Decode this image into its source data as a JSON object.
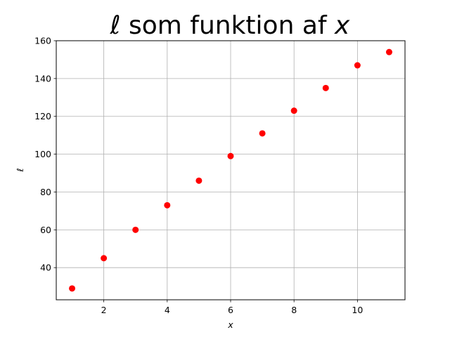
{
  "chart_data": {
    "type": "scatter",
    "title": {
      "symbol": "ℓ",
      "middle": " som funktion af ",
      "variable": "x"
    },
    "xlabel": "x",
    "ylabel": "ℓ",
    "xlim": [
      0.5,
      11.5
    ],
    "ylim": [
      23,
      160
    ],
    "xticks": [
      2,
      4,
      6,
      8,
      10
    ],
    "yticks": [
      40,
      60,
      80,
      100,
      120,
      140,
      160
    ],
    "grid": true,
    "marker_color": "#ff0000",
    "series": [
      {
        "x": [
          1,
          2,
          3,
          4,
          5,
          6,
          7,
          8,
          9,
          10,
          11
        ],
        "y": [
          29,
          45,
          60,
          73,
          86,
          99,
          111,
          123,
          135,
          147,
          154
        ]
      }
    ]
  }
}
